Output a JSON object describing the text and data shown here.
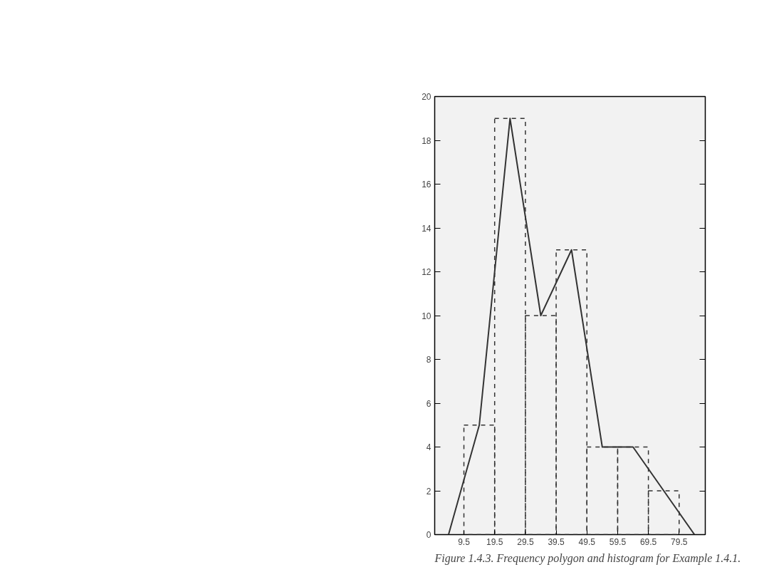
{
  "chart_data": {
    "type": "histogram",
    "xlim": [
      0,
      88
    ],
    "ylim": [
      0,
      20
    ],
    "xticks": [
      9.5,
      19.5,
      29.5,
      39.5,
      49.5,
      59.5,
      69.5,
      79.5
    ],
    "yticks": [
      0,
      2,
      4,
      6,
      8,
      10,
      12,
      14,
      16,
      18,
      20
    ],
    "grid": false,
    "series": [
      {
        "type": "histogram",
        "color": "#333333",
        "line_style": "dashed",
        "bins": [
          9.5,
          19.5,
          29.5,
          39.5,
          49.5,
          59.5,
          69.5,
          79.5
        ],
        "values": [
          5,
          19,
          10,
          13,
          4,
          4,
          2
        ]
      },
      {
        "type": "line",
        "color": "#333333",
        "line_style": "solid",
        "x": [
          4.5,
          14.5,
          24.5,
          34.5,
          44.5,
          54.5,
          64.5,
          74.5,
          84.5
        ],
        "values": [
          0,
          5,
          19,
          10,
          13,
          4,
          4,
          2,
          0
        ]
      }
    ],
    "annotations": [
      "Figure 1.4.3. Frequency polygon and histogram for Example 1.4.1."
    ]
  }
}
